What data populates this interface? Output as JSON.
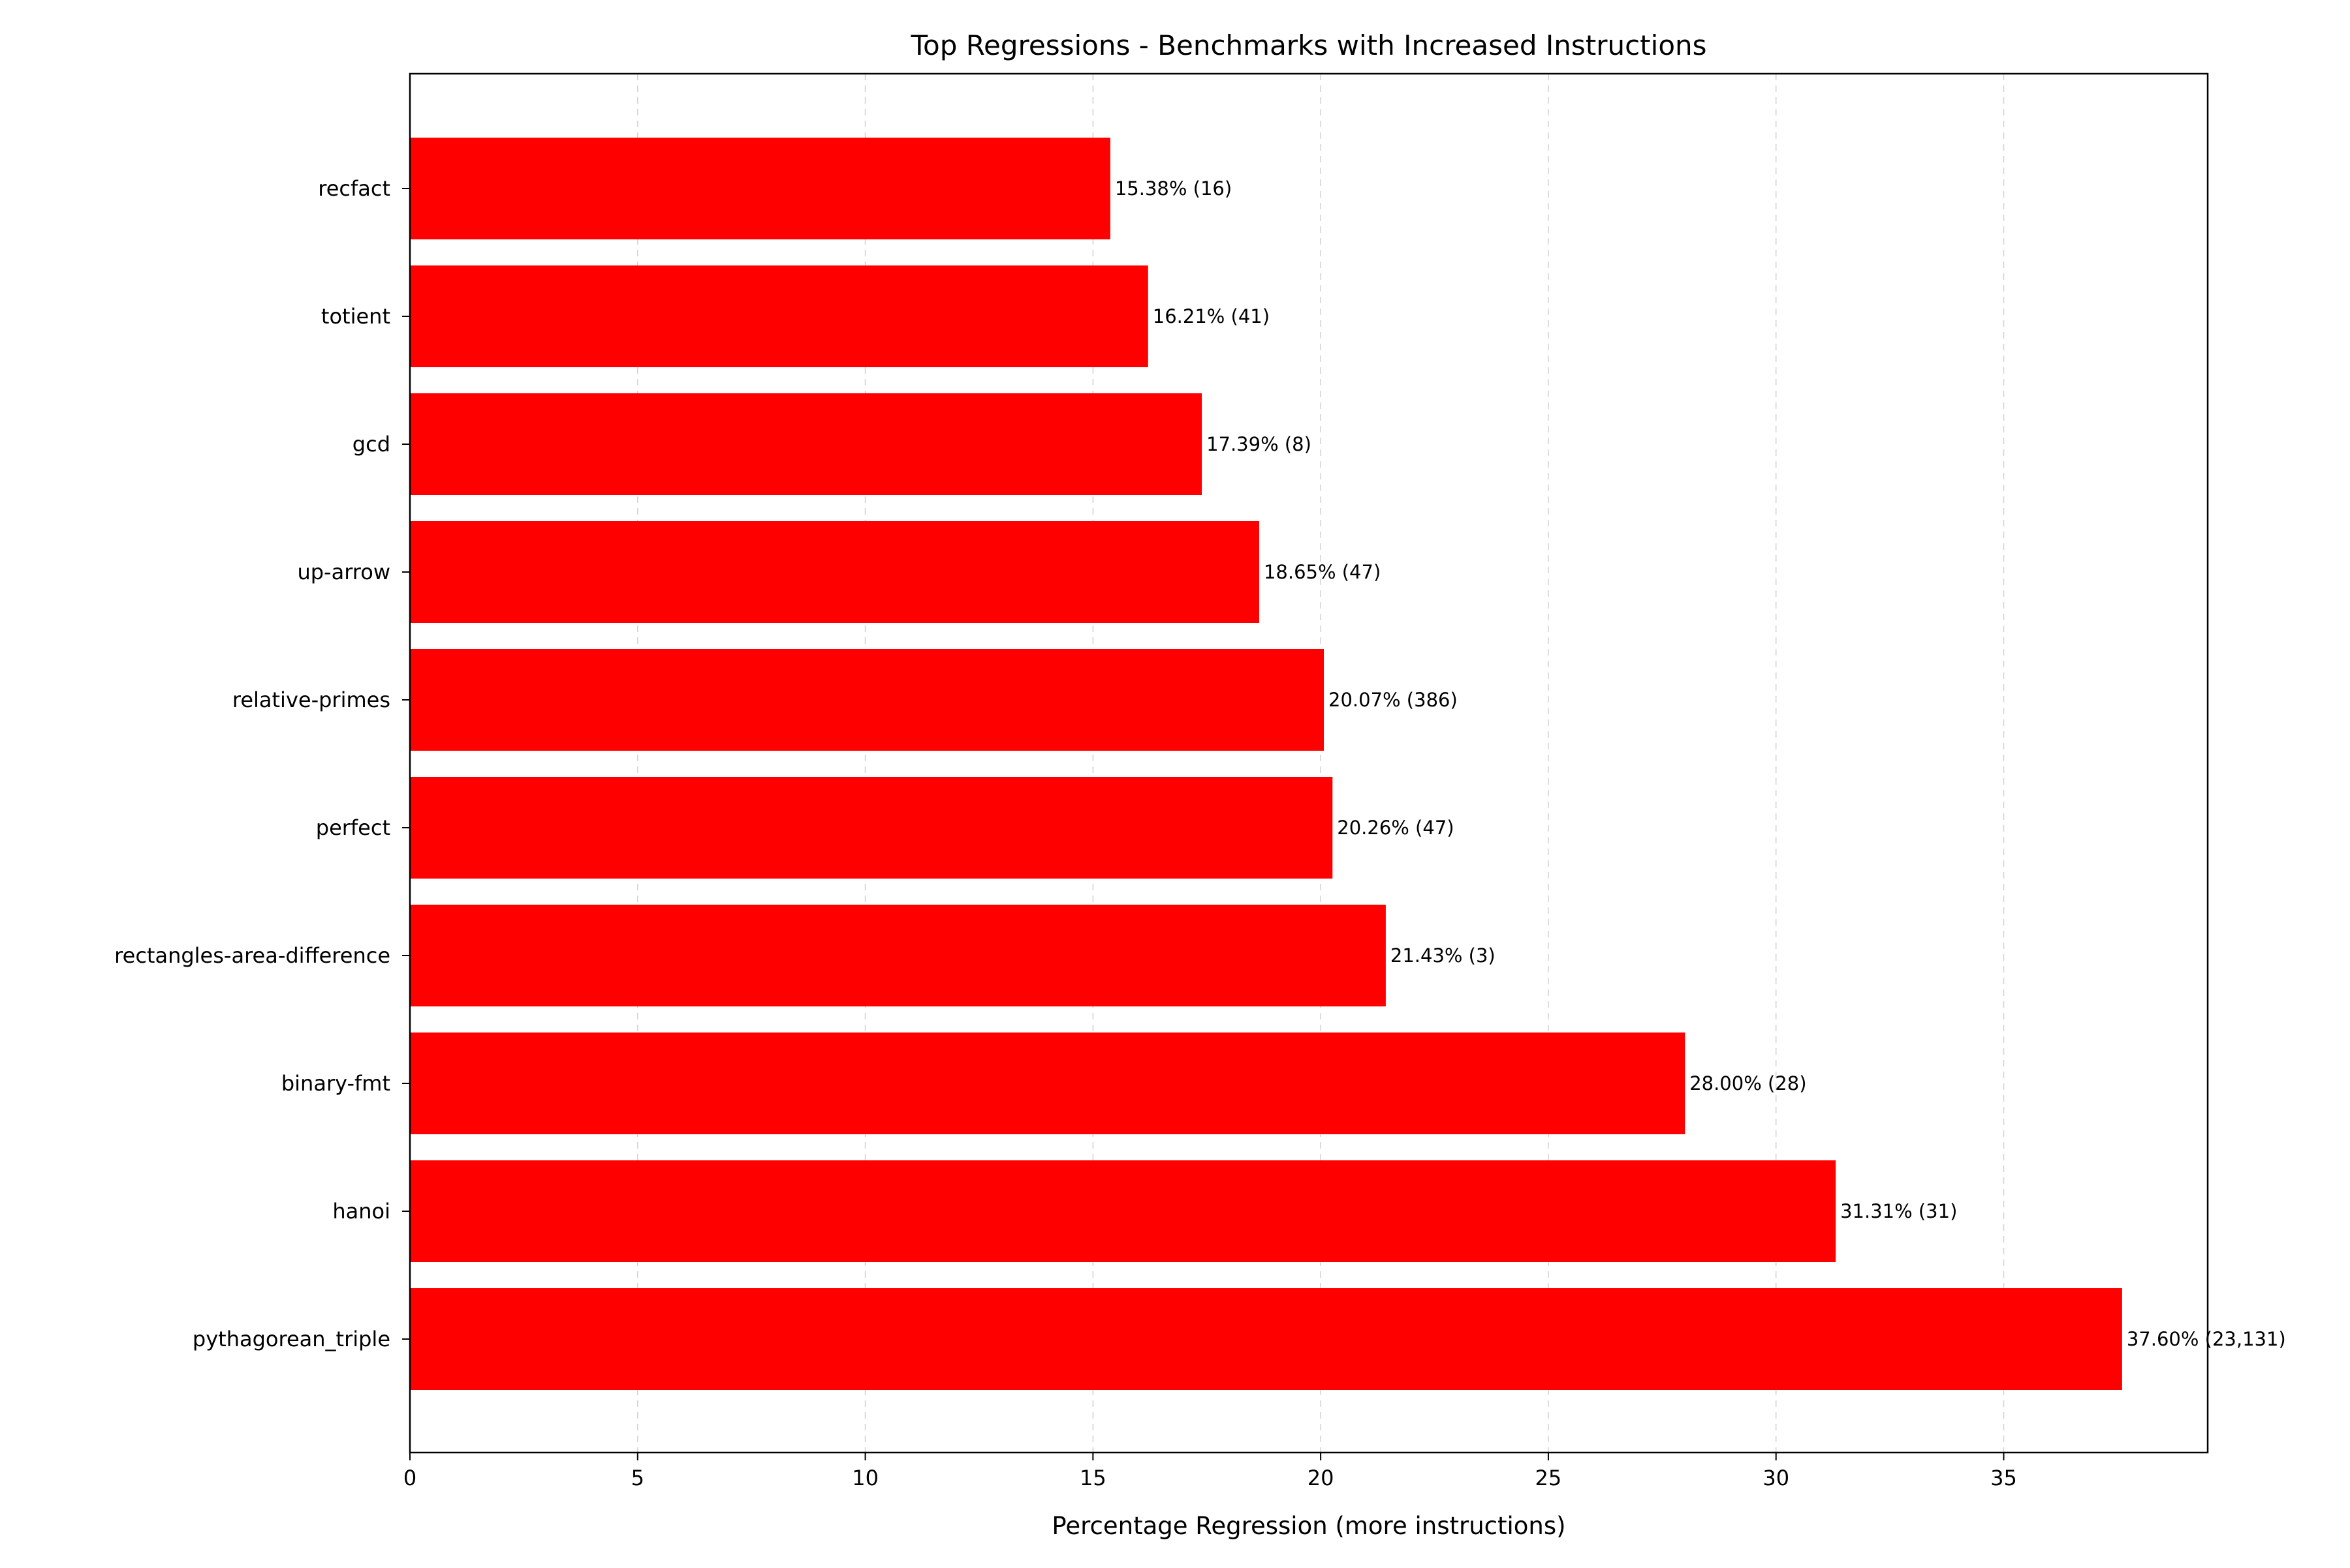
{
  "chart_data": {
    "type": "bar",
    "orientation": "horizontal",
    "title": "Top Regressions - Benchmarks with Increased Instructions",
    "xlabel": "Percentage Regression (more instructions)",
    "ylabel": "",
    "xlim": [
      0,
      39.48
    ],
    "x_ticks": [
      "0",
      "5",
      "10",
      "15",
      "20",
      "25",
      "30",
      "35"
    ],
    "grid": "vertical dashed",
    "bar_color": "#ff0000",
    "categories": [
      "recfact",
      "totient",
      "gcd",
      "up-arrow",
      "relative-primes",
      "perfect",
      "rectangles-area-difference",
      "binary-fmt",
      "hanoi",
      "pythagorean_triple"
    ],
    "values": [
      15.38,
      16.21,
      17.39,
      18.65,
      20.07,
      20.26,
      21.43,
      28.0,
      31.31,
      37.6
    ],
    "data_labels": [
      "15.38% (16)",
      "16.21% (41)",
      "17.39% (8)",
      "18.65% (47)",
      "20.07% (386)",
      "20.26% (47)",
      "21.43% (3)",
      "28.00% (28)",
      "31.31% (31)",
      "37.60% (23,131)"
    ]
  }
}
